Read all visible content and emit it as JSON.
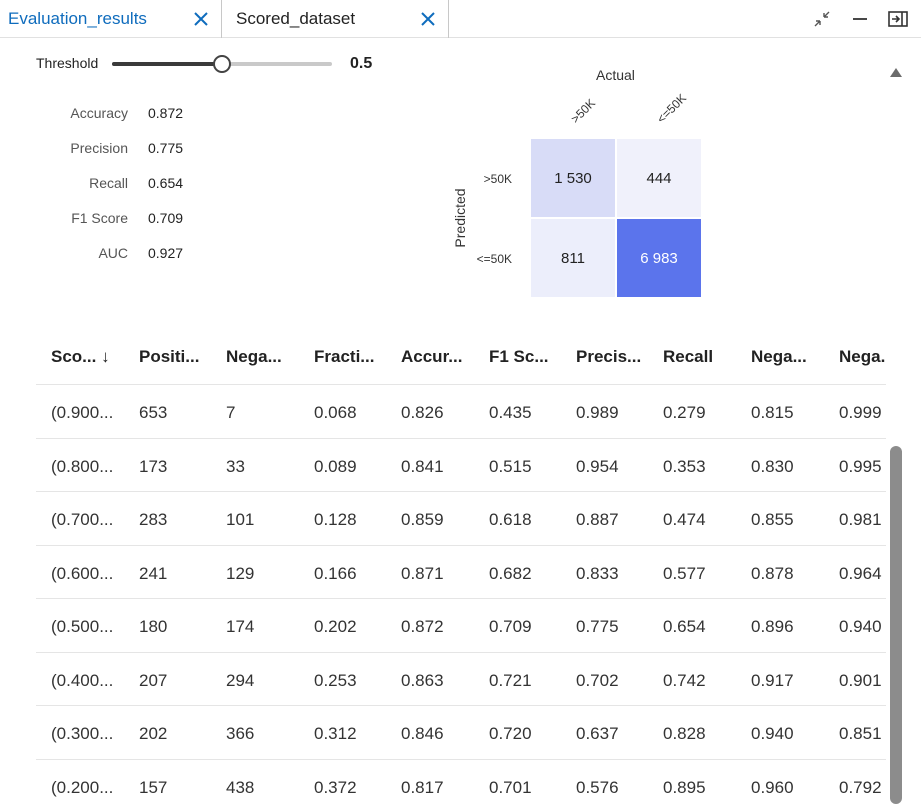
{
  "tabs": [
    {
      "label": "Evaluation_results",
      "active": true
    },
    {
      "label": "Scored_dataset",
      "active": false
    }
  ],
  "threshold": {
    "label": "Threshold",
    "value": "0.5",
    "fraction": 0.5
  },
  "metrics": [
    {
      "label": "Accuracy",
      "value": "0.872"
    },
    {
      "label": "Precision",
      "value": "0.775"
    },
    {
      "label": "Recall",
      "value": "0.654"
    },
    {
      "label": "F1 Score",
      "value": "0.709"
    },
    {
      "label": "AUC",
      "value": "0.927"
    }
  ],
  "confusion_matrix": {
    "actual_label": "Actual",
    "predicted_label": "Predicted",
    "columns": [
      ">50K",
      "<=50K"
    ],
    "rows": [
      ">50K",
      "<=50K"
    ],
    "cells": [
      [
        "1 530",
        "444"
      ],
      [
        "811",
        "6 983"
      ]
    ],
    "colors": [
      [
        "#d8dcf7",
        "#f0f1fb"
      ],
      [
        "#eceefb",
        "#5b74ec"
      ]
    ],
    "text_colors": [
      [
        "#222222",
        "#222222"
      ],
      [
        "#222222",
        "#ffffff"
      ]
    ]
  },
  "table": {
    "headers": [
      "Sco... ↓",
      "Positi...",
      "Nega...",
      "Fracti...",
      "Accur...",
      "F1 Sc...",
      "Precis...",
      "Recall",
      "Nega...",
      "Nega."
    ],
    "rows": [
      [
        "(0.900...",
        "653",
        "7",
        "0.068",
        "0.826",
        "0.435",
        "0.989",
        "0.279",
        "0.815",
        "0.999"
      ],
      [
        "(0.800...",
        "173",
        "33",
        "0.089",
        "0.841",
        "0.515",
        "0.954",
        "0.353",
        "0.830",
        "0.995"
      ],
      [
        "(0.700...",
        "283",
        "101",
        "0.128",
        "0.859",
        "0.618",
        "0.887",
        "0.474",
        "0.855",
        "0.981"
      ],
      [
        "(0.600...",
        "241",
        "129",
        "0.166",
        "0.871",
        "0.682",
        "0.833",
        "0.577",
        "0.878",
        "0.964"
      ],
      [
        "(0.500...",
        "180",
        "174",
        "0.202",
        "0.872",
        "0.709",
        "0.775",
        "0.654",
        "0.896",
        "0.940"
      ],
      [
        "(0.400...",
        "207",
        "294",
        "0.253",
        "0.863",
        "0.721",
        "0.702",
        "0.742",
        "0.917",
        "0.901"
      ],
      [
        "(0.300...",
        "202",
        "366",
        "0.312",
        "0.846",
        "0.720",
        "0.637",
        "0.828",
        "0.940",
        "0.851"
      ],
      [
        "(0.200...",
        "157",
        "438",
        "0.372",
        "0.817",
        "0.701",
        "0.576",
        "0.895",
        "0.960",
        "0.792"
      ]
    ]
  },
  "colors": {
    "accent": "#0f6cbd",
    "scroll_thumb": "#8c8c8c"
  }
}
